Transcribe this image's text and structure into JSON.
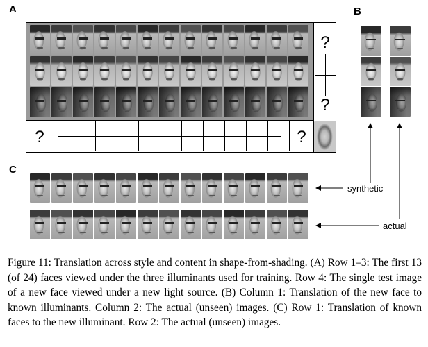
{
  "panels": {
    "a": "A",
    "b": "B",
    "c": "C"
  },
  "question_mark": "?",
  "labels": {
    "synthetic": "synthetic",
    "actual": "actual"
  },
  "caption": "Figure 11: Translation across style and content in shape-from-shading. (A) Row 1–3: The first 13 (of 24) faces viewed under the three illuminants used for training. Row 4: The single test image of a new face viewed under a new light source. (B) Column 1: Translation of the new face to known illuminants. Column 2: The actual (unseen) images. (C) Row 1: Translation of known faces to the new illuminant. Row 2: The actual (unseen) images.",
  "grid": {
    "columns": 13,
    "rows": 3
  },
  "colors": {
    "line": "#000000",
    "frame_fill": "#9a9a9a"
  },
  "row_shading": {
    "row1": "light-left",
    "row2": "frontal",
    "row3": "dark-left"
  }
}
